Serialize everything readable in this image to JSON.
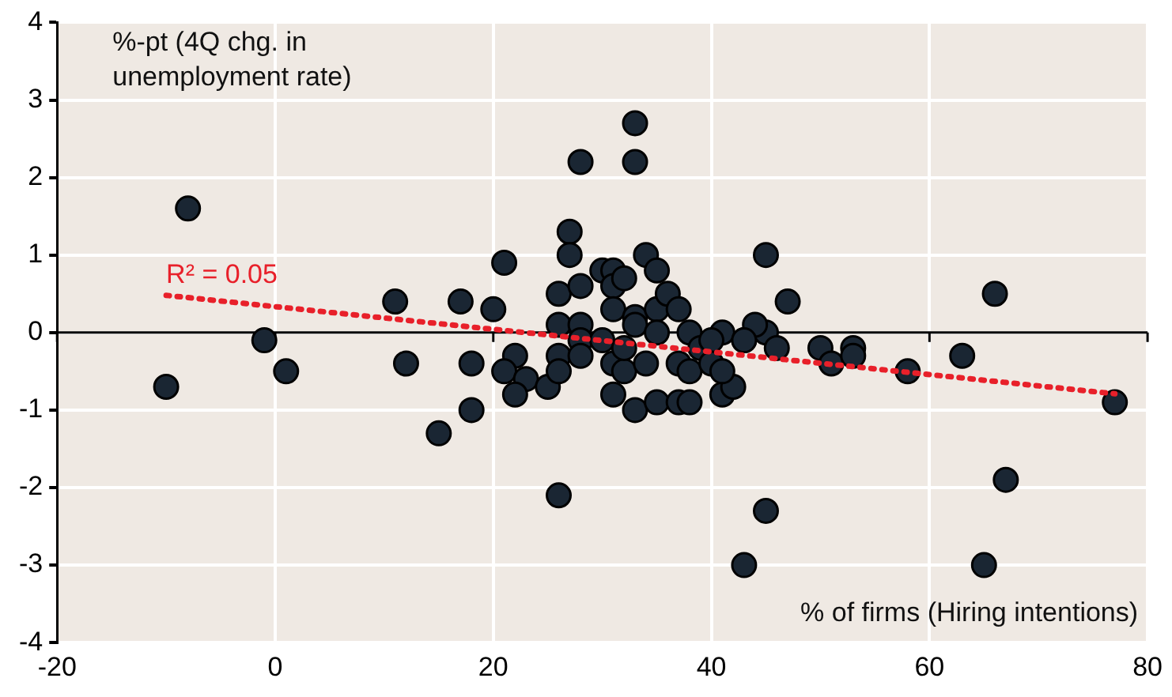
{
  "chart_data": {
    "type": "scatter",
    "xlabel": "% of firms (Hiring intentions)",
    "ylabel": "%-pt (4Q chg. in unemployment rate)",
    "annotations": [
      {
        "text": "R² = 0.05",
        "x": -10,
        "y": 0.48
      }
    ],
    "xlim": [
      -20,
      80
    ],
    "xticks": [
      -20,
      0,
      20,
      40,
      60,
      80
    ],
    "ylim": [
      -4,
      4
    ],
    "yticks": [
      -4,
      -3,
      -2,
      -1,
      0,
      1,
      2,
      3,
      4
    ],
    "grid": true,
    "legend": false,
    "marker": "circle",
    "series": [
      {
        "type": "scatter",
        "color": "#1a2633",
        "x": [
          -10,
          -8,
          -1,
          1,
          11,
          12,
          17,
          18,
          18,
          15,
          20,
          21,
          22,
          21,
          23,
          22,
          25,
          26,
          26,
          26,
          26,
          26,
          27,
          27,
          28,
          28,
          28,
          28,
          28,
          30,
          31,
          31,
          32,
          31,
          30,
          31,
          32,
          31,
          32,
          33,
          33,
          33,
          33,
          33,
          34,
          35,
          34,
          35,
          35,
          36,
          35,
          37,
          37,
          38,
          38,
          37,
          38,
          39,
          41,
          41,
          42,
          43,
          45,
          45,
          43,
          45,
          47,
          44,
          43,
          46,
          40,
          40,
          41,
          50,
          51,
          53,
          53,
          58,
          63,
          66,
          67,
          65,
          77
        ],
        "values": [
          -0.7,
          1.6,
          -0.1,
          -0.5,
          0.4,
          -0.4,
          0.4,
          -0.4,
          -1.0,
          -1.3,
          0.3,
          0.9,
          -0.3,
          -0.5,
          -0.6,
          -0.8,
          -0.7,
          -2.1,
          0.1,
          0.5,
          -0.3,
          -0.5,
          1.3,
          1.0,
          2.2,
          0.6,
          0.1,
          -0.1,
          -0.3,
          0.8,
          0.8,
          0.6,
          0.7,
          0.3,
          -0.1,
          -0.4,
          -0.5,
          -0.8,
          -0.2,
          2.7,
          2.2,
          0.2,
          0.1,
          -1.0,
          1.0,
          0.8,
          -0.4,
          0.3,
          0,
          0.5,
          -0.9,
          0.3,
          -0.4,
          0,
          -0.5,
          -0.9,
          -0.9,
          -0.2,
          0,
          -0.8,
          -0.7,
          -0.1,
          1.0,
          0,
          -3.0,
          -2.3,
          0.4,
          0.1,
          -0.1,
          -0.2,
          -0.1,
          -0.4,
          -0.5,
          -0.2,
          -0.4,
          -0.2,
          -0.3,
          -0.5,
          -0.3,
          0.5,
          -1.9,
          -3.0,
          -0.9
        ]
      },
      {
        "type": "line",
        "color": "#e8202a",
        "line_style": "dotted",
        "marker": "none",
        "x": [
          -10,
          77
        ],
        "values": [
          0.48,
          -0.79
        ]
      }
    ]
  }
}
